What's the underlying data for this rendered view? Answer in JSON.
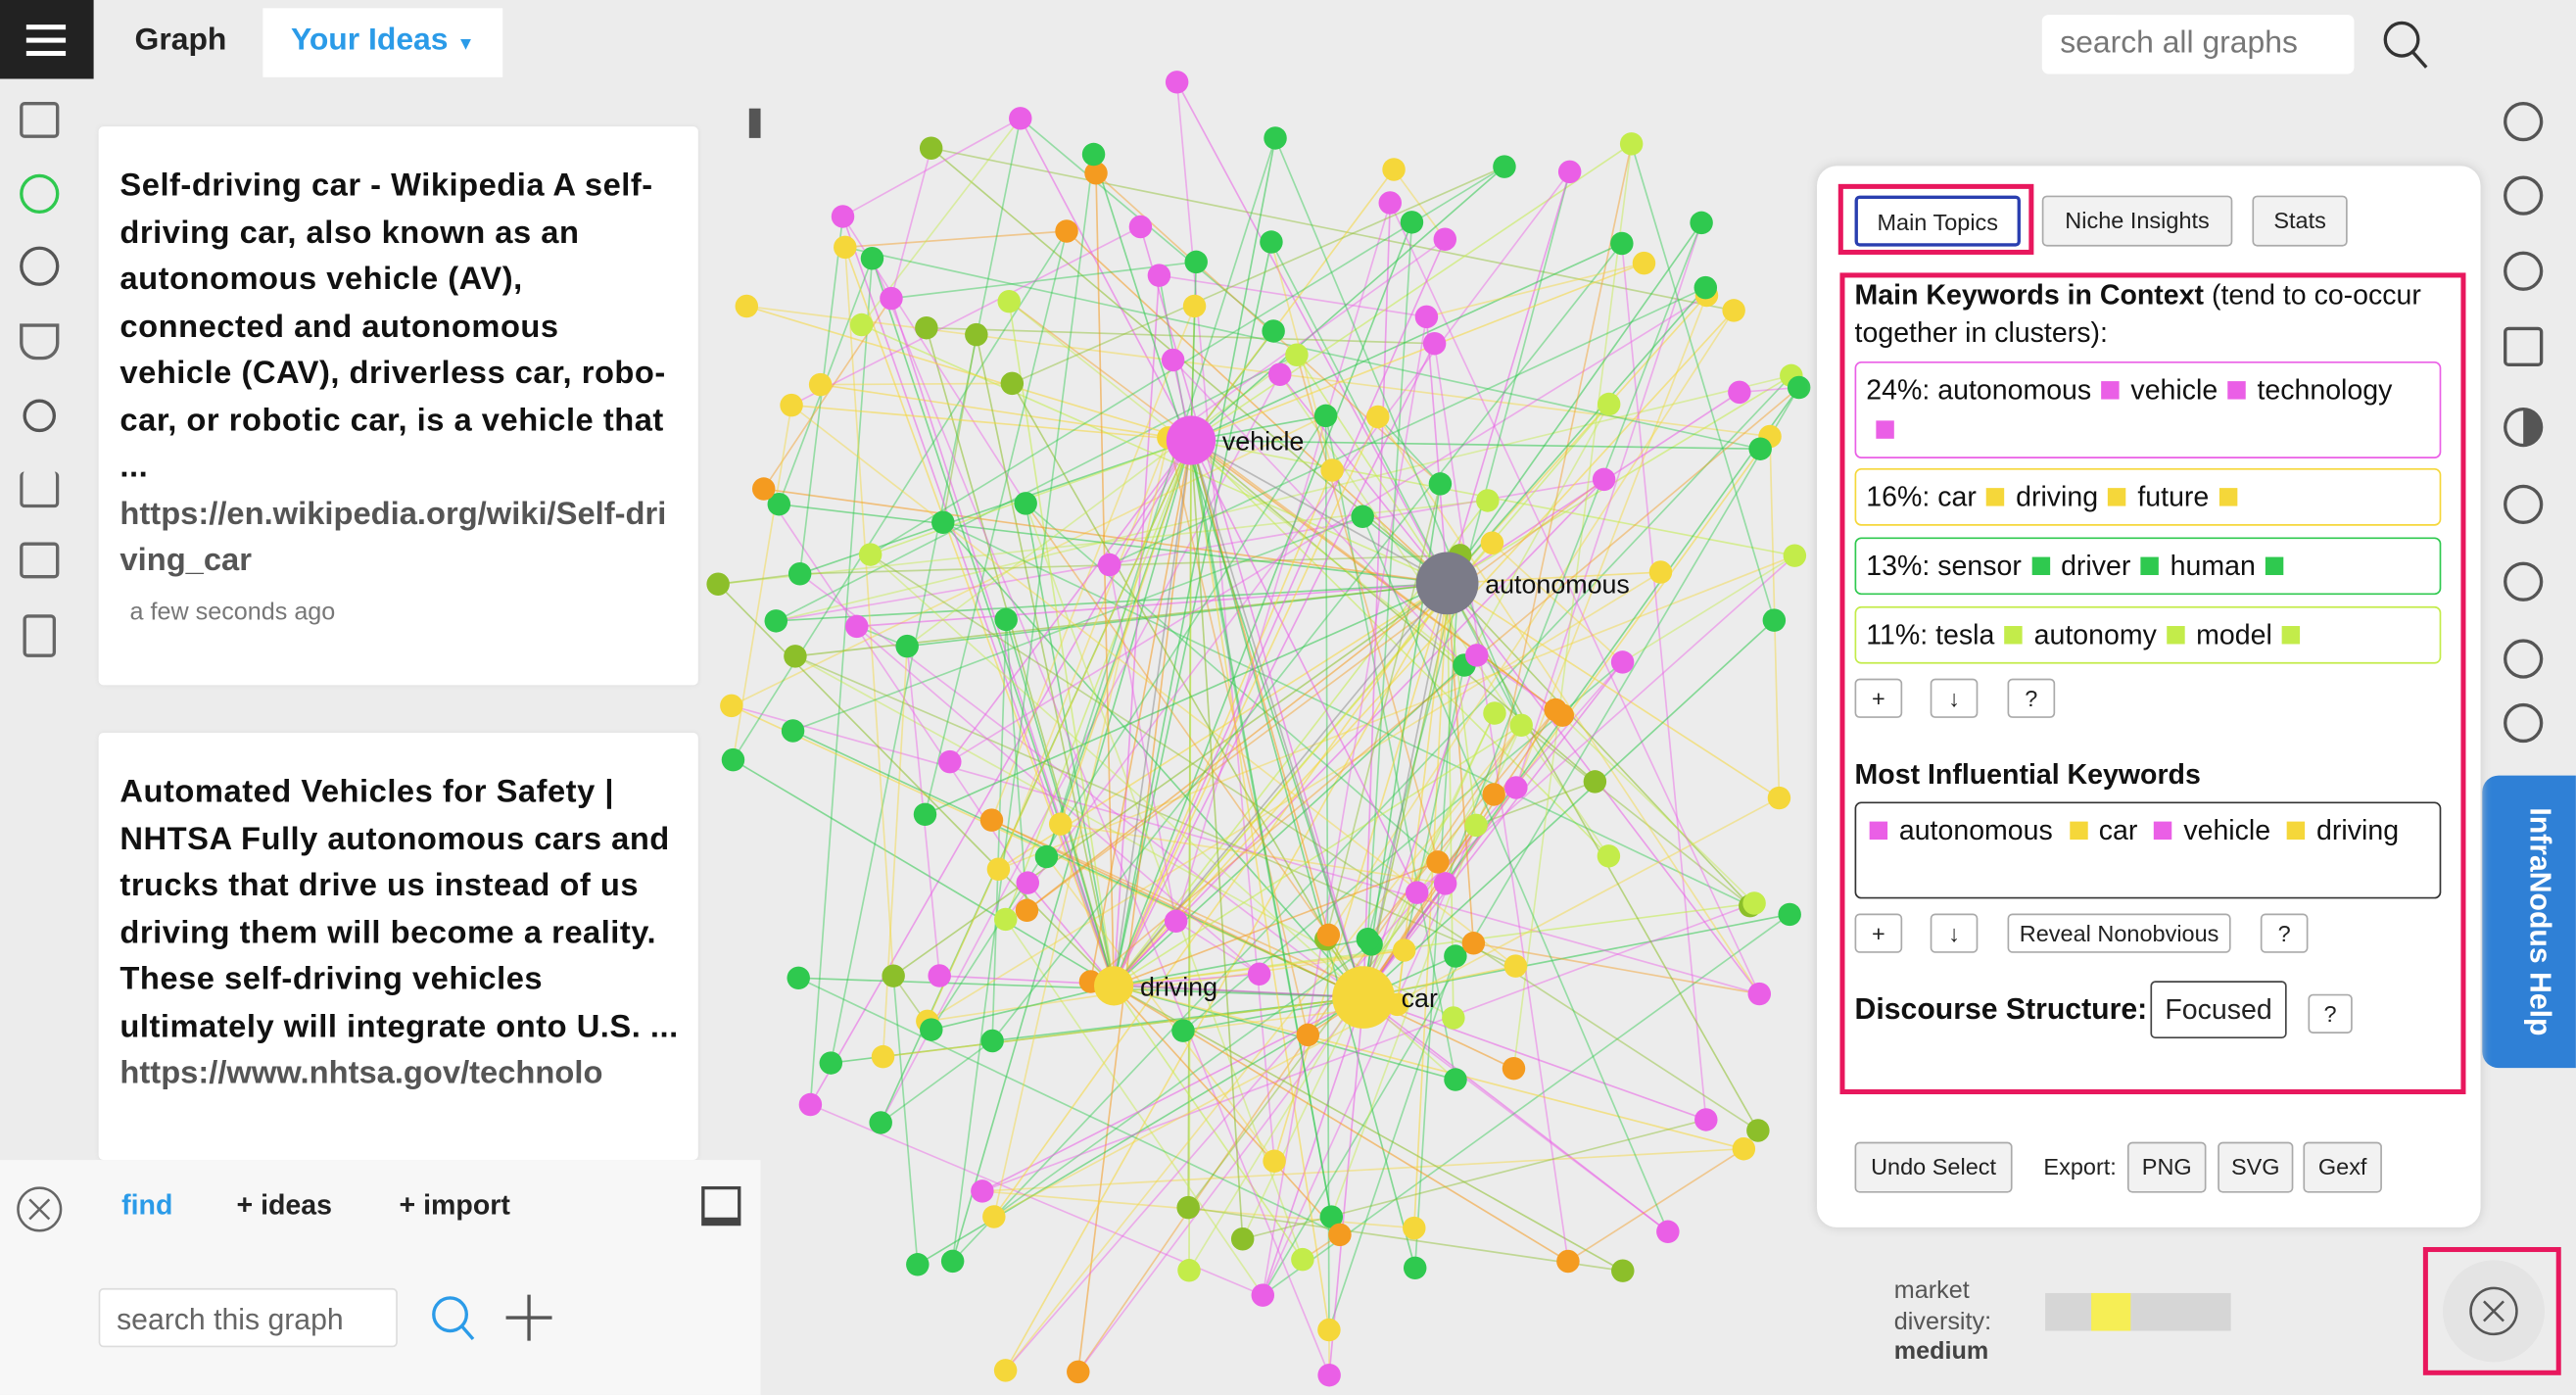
{
  "toolbar": {
    "menu_title": "Graph",
    "dropdown": "Your Ideas",
    "search_placeholder": "search all graphs"
  },
  "statements": [
    {
      "text": "Self-driving car - Wikipedia A self-driving car, also known as an autonomous vehicle (AV), connected and autonomous vehicle (CAV), driverless car, robo-car, or robotic car, is a vehicle that ...",
      "url": "https://en.wikipedia.org/wiki/Self-driving_car",
      "time": "a few seconds ago"
    },
    {
      "text": "Automated Vehicles for Safety | NHTSA Fully autonomous cars and trucks that drive us instead of us driving them will become a reality. These self-driving vehicles ultimately will integrate onto U.S. ...",
      "url": "https://www.nhtsa.gov/technolo"
    }
  ],
  "bottom_panel": {
    "tabs": [
      "find",
      "+ ideas",
      "+ import"
    ],
    "search_placeholder": "search this graph"
  },
  "graph": {
    "labels": [
      "vehicle",
      "autonomous",
      "driving",
      "car"
    ]
  },
  "analytics": {
    "tabs": [
      "Main Topics",
      "Niche Insights",
      "Stats"
    ],
    "main_keywords_heading": "Main Keywords in Context",
    "main_keywords_note": "(tend to co-occur together in clusters):",
    "topics": [
      {
        "share": "24%:",
        "words": [
          "autonomous",
          "vehicle",
          "technology"
        ],
        "color": "#ea5fe6"
      },
      {
        "share": "16%:",
        "words": [
          "car",
          "driving",
          "future"
        ],
        "color": "#f5d73a"
      },
      {
        "share": "13%:",
        "words": [
          "sensor",
          "driver",
          "human"
        ],
        "color": "#2fc94f"
      },
      {
        "share": "11%:",
        "words": [
          "tesla",
          "autonomy",
          "model"
        ],
        "color": "#c3ec4a"
      }
    ],
    "topic_buttons": [
      "+",
      "↓",
      "?"
    ],
    "influential_heading": "Most Influential Keywords",
    "influential": [
      {
        "word": "autonomous",
        "color": "#ea5fe6"
      },
      {
        "word": "car",
        "color": "#f5d73a"
      },
      {
        "word": "vehicle",
        "color": "#ea5fe6"
      },
      {
        "word": "driving",
        "color": "#f5d73a"
      }
    ],
    "influential_buttons": [
      "+",
      "↓",
      "Reveal Nonobvious",
      "?"
    ],
    "discourse_label": "Discourse Structure:",
    "discourse_value": "Focused",
    "discourse_help": "?",
    "undo": "Undo Select",
    "export_label": "Export:",
    "export": [
      "PNG",
      "SVG",
      "Gexf"
    ]
  },
  "diversity": {
    "label": "market diversity:",
    "value": "medium"
  },
  "help_tab": "InfraNodus Help"
}
